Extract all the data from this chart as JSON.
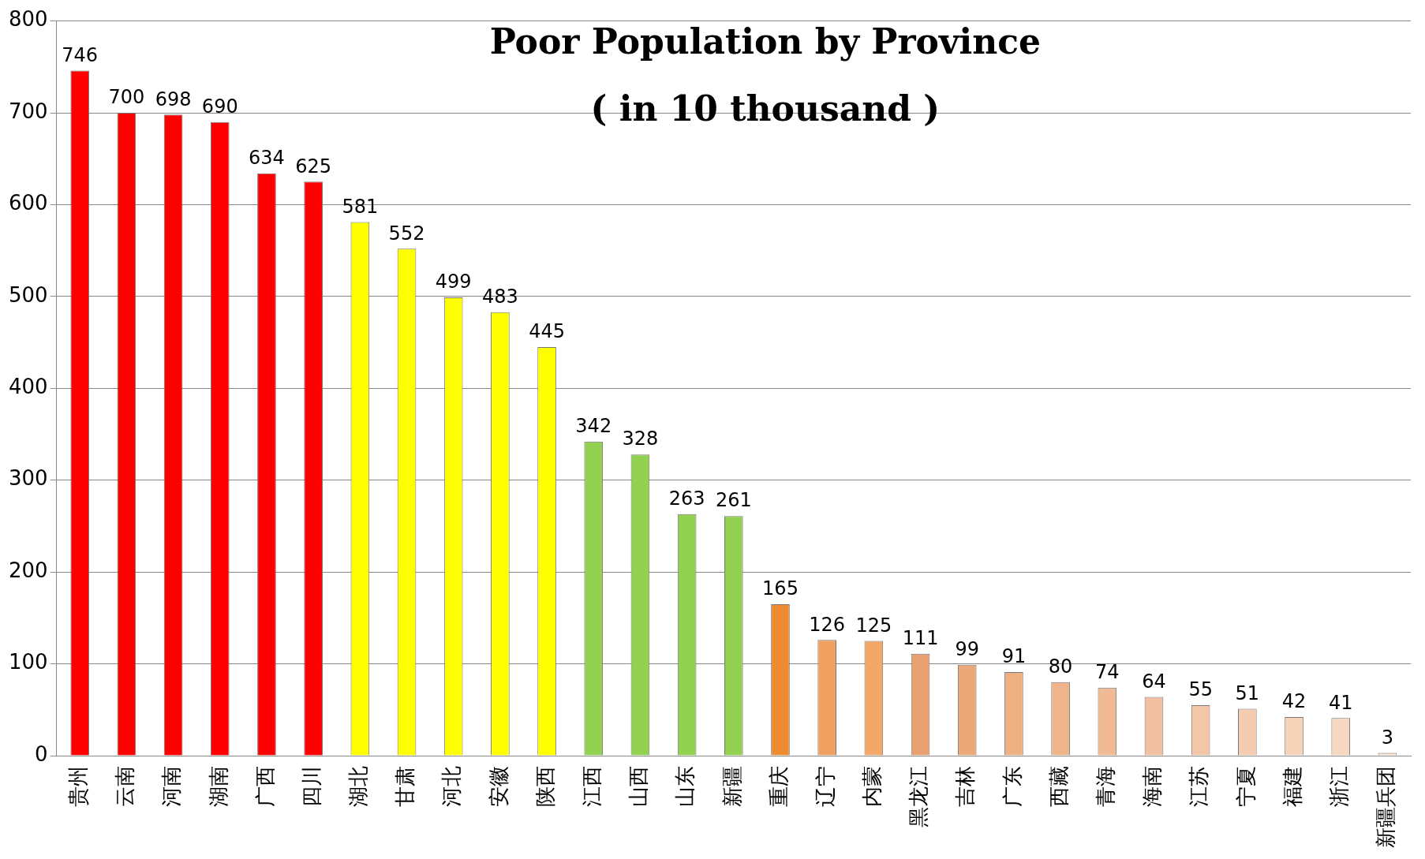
{
  "chart_data": {
    "type": "bar",
    "title": "Poor Population by Province",
    "subtitle": "( in 10 thousand )",
    "categories": [
      "贵州",
      "云南",
      "河南",
      "湖南",
      "广西",
      "四川",
      "湖北",
      "甘肃",
      "河北",
      "安徽",
      "陕西",
      "江西",
      "山西",
      "山东",
      "新疆",
      "重庆",
      "辽宁",
      "内蒙",
      "黑龙江",
      "吉林",
      "广东",
      "西藏",
      "青海",
      "海南",
      "江苏",
      "宁夏",
      "福建",
      "浙江",
      "新疆兵团"
    ],
    "values": [
      746,
      700,
      698,
      690,
      634,
      625,
      581,
      552,
      499,
      483,
      445,
      342,
      328,
      263,
      261,
      165,
      126,
      125,
      111,
      99,
      91,
      80,
      74,
      64,
      55,
      51,
      42,
      41,
      3
    ],
    "colors": [
      "#ff0000",
      "#ff0000",
      "#ff0000",
      "#ff0000",
      "#ff0000",
      "#ff0000",
      "#ffff00",
      "#ffff00",
      "#ffff00",
      "#ffff00",
      "#ffff00",
      "#92d050",
      "#92d050",
      "#92d050",
      "#92d050",
      "#f08a30",
      "#f0a060",
      "#f4a868",
      "#e8a070",
      "#eca878",
      "#eeb080",
      "#f0b48a",
      "#f0ba94",
      "#f2c0a0",
      "#f4c6a8",
      "#f4ccb0",
      "#f6d2b8",
      "#f6d8c0",
      "#f8dcc8"
    ],
    "ylim": [
      0,
      800
    ],
    "yticks": [
      0,
      100,
      200,
      300,
      400,
      500,
      600,
      700,
      800
    ],
    "grid": "y",
    "data_labels": true,
    "legend": false
  }
}
